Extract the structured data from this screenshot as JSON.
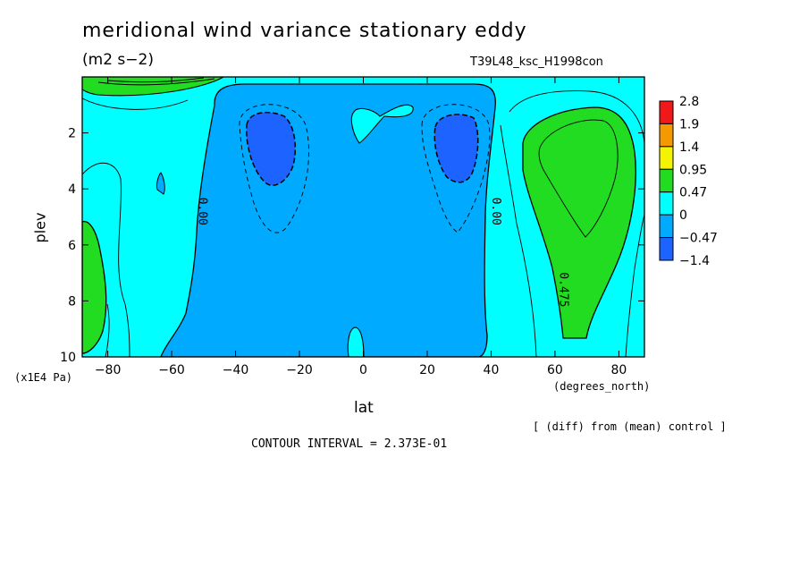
{
  "chart_data": {
    "type": "heatmap",
    "title": "meridional wind variance  stationary eddy",
    "units": "(m2 s−2)",
    "run_id": "T39L48_ksc_H1998con",
    "xlabel": "lat",
    "x_units": "(degrees_north)",
    "ylabel": "plev",
    "y_units": "(x1E4 Pa)",
    "xlim": [
      -88,
      88
    ],
    "ylim": [
      10,
      0
    ],
    "x_ticks": [
      -80,
      -60,
      -40,
      -20,
      0,
      20,
      40,
      60,
      80
    ],
    "y_ticks": [
      2,
      4,
      6,
      8,
      10
    ],
    "contour_labels": [
      {
        "text": "0.00",
        "lat": -51.5,
        "plev": 4.8
      },
      {
        "text": "0.00",
        "lat": 40.5,
        "plev": 4.8
      },
      {
        "text": "0.475",
        "lat": 61.5,
        "plev": 7.6
      }
    ],
    "colorbar": {
      "levels": [
        "2.8",
        "1.9",
        "1.4",
        "0.95",
        "0.47",
        "0",
        "−0.47",
        "−1.4"
      ],
      "colors": [
        "#f01818",
        "#f49a00",
        "#f4f400",
        "#22dc22",
        "#00ffff",
        "#00aaff",
        "#1d63ff"
      ]
    },
    "regions": [
      {
        "value_band": "0 to 0.47",
        "color": "#00ffff",
        "description": "background"
      },
      {
        "value_band": "-0.47 to 0",
        "color": "#00aaff",
        "lat_range": [
          -55,
          42
        ]
      },
      {
        "value_band": "-1.4 to -0.47",
        "color": "#1d63ff",
        "centers": [
          [
            -30,
            2.6
          ],
          [
            30,
            2.6
          ]
        ]
      },
      {
        "value_band": "0.47 to 0.95",
        "color": "#22dc22",
        "centers": [
          [
            68,
            4
          ],
          [
            -85,
            8
          ],
          [
            -70,
            0.3
          ]
        ]
      }
    ],
    "note": "[ (diff) from (mean) control ]",
    "contour_interval": "CONTOUR INTERVAL = 2.373E-01",
    "grid": false
  }
}
